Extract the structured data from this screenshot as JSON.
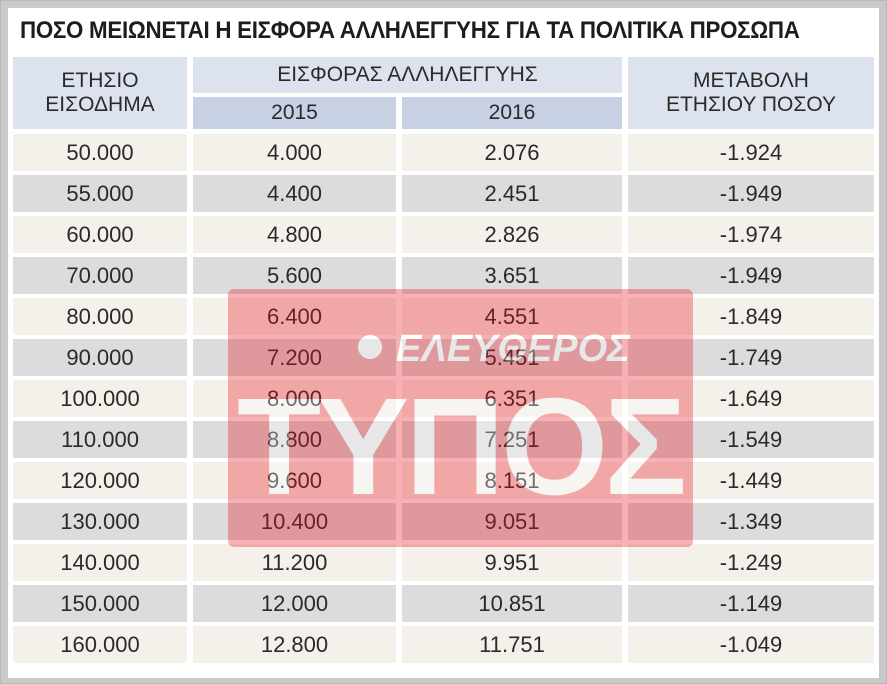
{
  "title": "ΠΟΣΟ ΜΕΙΩΝΕΤΑΙ Η ΕΙΣΦΟΡΑ ΑΛΛΗΛΕΓΓΥΗΣ ΓΙΑ ΤΑ ΠΟΛΙΤΙΚΑ ΠΡΟΣΩΠΑ",
  "watermark": {
    "brand_top": "ΕΛΕΥΘΕΡΟΣ",
    "brand_bottom": "ΤΥΠΟΣ"
  },
  "colors": {
    "header_bg": "#dde3ee",
    "subheader_bg": "#c7d1e3",
    "row_light": "#f4f1eb",
    "row_dark": "#dcdcdc",
    "frame": "#c9c9c9",
    "watermark_red": "#e8131d"
  },
  "chart_data": {
    "type": "table",
    "title": "ΠΟΣΟ ΜΕΙΩΝΕΤΑΙ Η ΕΙΣΦΟΡΑ ΑΛΛΗΛΕΓΓΥΗΣ ΓΙΑ ΤΑ ΠΟΛΙΤΙΚΑ ΠΡΟΣΩΠΑ",
    "headers": {
      "col1_line1": "ΕΤΗΣΙΟ",
      "col1_line2": "ΕΙΣΟΔΗΜΑ",
      "group": "ΕΙΣΦΟΡΑΣ ΑΛΛΗΛΕΓΓΥΗΣ",
      "year1": "2015",
      "year2": "2016",
      "col4_line1": "ΜΕΤΑΒΟΛΗ",
      "col4_line2": "ΕΤΗΣΙΟΥ ΠΟΣΟΥ"
    },
    "rows": [
      [
        "50.000",
        "4.000",
        "2.076",
        "-1.924"
      ],
      [
        "55.000",
        "4.400",
        "2.451",
        "-1.949"
      ],
      [
        "60.000",
        "4.800",
        "2.826",
        "-1.974"
      ],
      [
        "70.000",
        "5.600",
        "3.651",
        "-1.949"
      ],
      [
        "80.000",
        "6.400",
        "4.551",
        "-1.849"
      ],
      [
        "90.000",
        "7.200",
        "5.451",
        "-1.749"
      ],
      [
        "100.000",
        "8.000",
        "6.351",
        "-1.649"
      ],
      [
        "110.000",
        "8.800",
        "7.251",
        "-1.549"
      ],
      [
        "120.000",
        "9.600",
        "8.151",
        "-1.449"
      ],
      [
        "130.000",
        "10.400",
        "9.051",
        "-1.349"
      ],
      [
        "140.000",
        "11.200",
        "9.951",
        "-1.249"
      ],
      [
        "150.000",
        "12.000",
        "10.851",
        "-1.149"
      ],
      [
        "160.000",
        "12.800",
        "11.751",
        "-1.049"
      ]
    ]
  }
}
